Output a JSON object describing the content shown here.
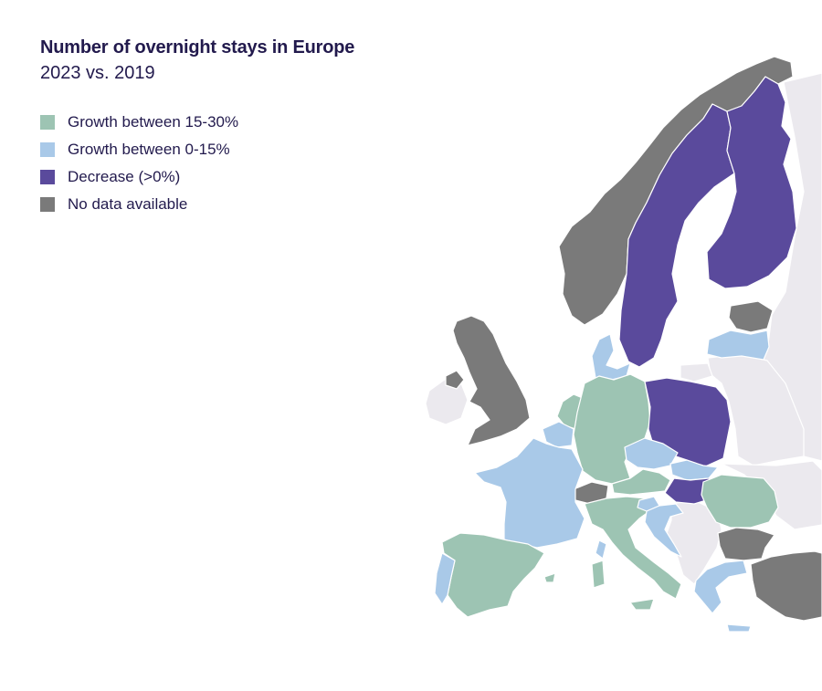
{
  "title": "Number of overnight stays in Europe",
  "subtitle": "2023 vs. 2019",
  "colors": {
    "growth_high": "#9dc4b3",
    "growth_low": "#a9c9e8",
    "decrease": "#5a4a9c",
    "no_data": "#7a7a7a",
    "not_covered": "#ebe9ee"
  },
  "legend": [
    {
      "label": "Growth between 15-30%",
      "color": "#9dc4b3"
    },
    {
      "label": "Growth between 0-15%",
      "color": "#a9c9e8"
    },
    {
      "label": "Decrease (>0%)",
      "color": "#5a4a9c"
    },
    {
      "label": "No data available",
      "color": "#7a7a7a"
    }
  ],
  "regions": [
    {
      "country": "Norway",
      "category": "no_data"
    },
    {
      "country": "Sweden",
      "category": "decrease"
    },
    {
      "country": "Finland",
      "category": "decrease"
    },
    {
      "country": "Estonia",
      "category": "no_data"
    },
    {
      "country": "Latvia",
      "category": "growth_low"
    },
    {
      "country": "Denmark",
      "category": "growth_low"
    },
    {
      "country": "United Kingdom",
      "category": "no_data"
    },
    {
      "country": "Ireland",
      "category": "not_covered"
    },
    {
      "country": "Netherlands",
      "category": "growth_high"
    },
    {
      "country": "Belgium",
      "category": "growth_low"
    },
    {
      "country": "Germany",
      "category": "growth_high"
    },
    {
      "country": "Poland",
      "category": "decrease"
    },
    {
      "country": "Czechia",
      "category": "growth_low"
    },
    {
      "country": "Slovakia",
      "category": "growth_low"
    },
    {
      "country": "Austria",
      "category": "growth_high"
    },
    {
      "country": "Hungary",
      "category": "decrease"
    },
    {
      "country": "Switzerland",
      "category": "no_data"
    },
    {
      "country": "France",
      "category": "growth_low"
    },
    {
      "country": "Spain",
      "category": "growth_high"
    },
    {
      "country": "Portugal",
      "category": "growth_low"
    },
    {
      "country": "Italy",
      "category": "growth_high"
    },
    {
      "country": "Slovenia",
      "category": "growth_low"
    },
    {
      "country": "Croatia",
      "category": "growth_low"
    },
    {
      "country": "Romania",
      "category": "growth_high"
    },
    {
      "country": "Bulgaria",
      "category": "no_data"
    },
    {
      "country": "Greece",
      "category": "growth_low"
    },
    {
      "country": "Turkey",
      "category": "no_data"
    }
  ]
}
